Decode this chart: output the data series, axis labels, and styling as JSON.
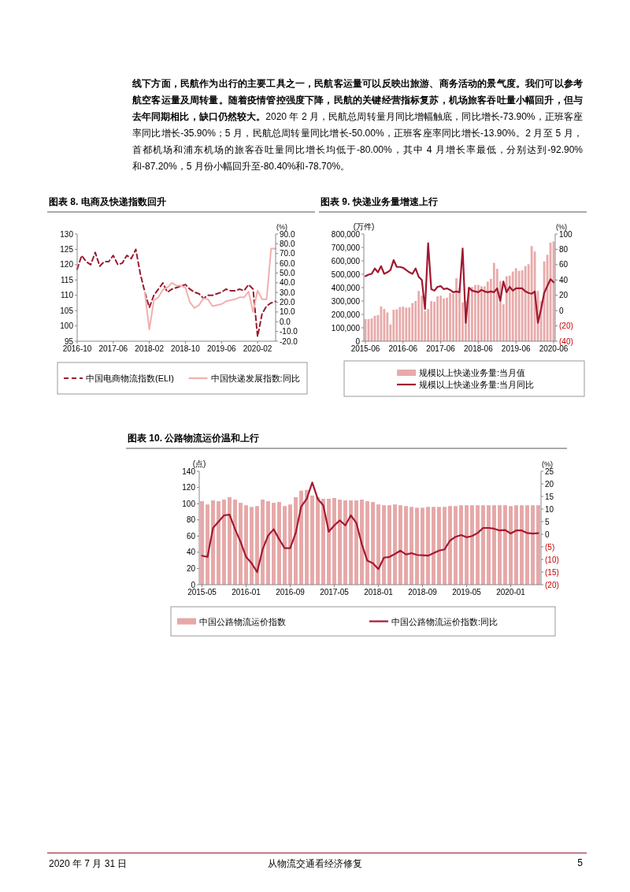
{
  "chart_data": [
    {
      "type": "line",
      "title": "图表 8. 电商及快递指数回升",
      "y2label": "(%)",
      "annotations": [
        "线下方面，民航作为出行的主要工具之一，民航客运量可以反映出旅游、商务活动的景气度。我们可以参考航空客运量及周转量。随着疫情管控强度下降，民航的关键经营指标复苏，机场旅客吞吐量小幅回升，但与去年同期相比，缺口仍然较大。",
        "2020 年 2 月，民航总周转量月同比增幅触底，同比增长-73.90%，正班客座率同比增长-35.90%；5 月，民航总周转量同比增长-50.00%，正班客座率同比增长-13.90%。2 月至 5 月，首都机场和浦东机场的旅客吞吐量同比增长均低于-80.00%，其中 4 月增长率最低，分别达到-92.90%和-87.20%，5 月份小幅回升至-80.40%和-78.70%。"
      ],
      "categories": [
        "2016-10",
        null,
        null,
        null,
        null,
        null,
        null,
        null,
        "2017-06",
        null,
        null,
        null,
        null,
        null,
        null,
        null,
        "2018-02",
        null,
        null,
        null,
        null,
        null,
        null,
        null,
        "2018-10",
        null,
        null,
        null,
        null,
        null,
        null,
        null,
        "2019-06",
        null,
        null,
        null,
        null,
        null,
        null,
        null,
        "2020-02",
        null,
        null,
        null,
        null
      ],
      "series": [
        {
          "name": "中国电商物流指数(ELI)",
          "line_style": "dashed",
          "color": "#9b1b30",
          "values": [
            118.5,
            123,
            121,
            120,
            124,
            119.5,
            121,
            121,
            123,
            120,
            120.5,
            123,
            122,
            125,
            117,
            111,
            106,
            110,
            112,
            114,
            111,
            112,
            112.5,
            113,
            113.5,
            112,
            111,
            110.5,
            109,
            110,
            110,
            110.5,
            111,
            112,
            111.5,
            111.5,
            112,
            111.5,
            113.5,
            112,
            96.5,
            104,
            106.5,
            107.5,
            108
          ]
        },
        {
          "name": "中国快递发展指数:同比",
          "axis": "y2",
          "line_style": "solid",
          "color": "#f0b0ae",
          "values": [
            null,
            null,
            null,
            null,
            null,
            null,
            null,
            null,
            null,
            null,
            null,
            null,
            null,
            null,
            null,
            30,
            -8,
            22,
            25,
            33,
            35,
            40,
            37,
            37,
            35,
            20,
            14,
            17,
            24,
            23,
            16,
            17,
            18,
            21,
            22,
            23,
            25,
            25,
            31,
            10,
            32,
            23,
            23,
            75,
            75
          ]
        }
      ],
      "ylim": [
        95,
        130
      ],
      "yticks": [
        95,
        100,
        105,
        110,
        115,
        120,
        125,
        130
      ],
      "y2lim": [
        -20,
        90
      ],
      "y2ticks": [
        {
          "value": -20,
          "label": "-20.0"
        },
        {
          "value": -10,
          "label": "-10.0"
        },
        {
          "value": 0,
          "label": "0.0"
        },
        {
          "value": 10,
          "label": "10.0"
        },
        {
          "value": 20,
          "label": "20.0"
        },
        {
          "value": 30,
          "label": "30.0"
        },
        {
          "value": 40,
          "label": "40.0"
        },
        {
          "value": 50,
          "label": "50.0"
        },
        {
          "value": 60,
          "label": "60.0"
        },
        {
          "value": 70,
          "label": "70.0"
        },
        {
          "value": 80,
          "label": "80.0"
        },
        {
          "value": 90,
          "label": "90.0"
        }
      ],
      "legend": "bottom"
    },
    {
      "type": "bar",
      "title": "图表 9. 快递业务量增速上行",
      "ylabel": "(万件)",
      "y2label": "(%)",
      "categories": [
        "2015-06",
        null,
        null,
        null,
        null,
        null,
        null,
        null,
        null,
        null,
        null,
        null,
        "2016-06",
        null,
        null,
        null,
        null,
        null,
        null,
        null,
        null,
        null,
        null,
        null,
        "2017-06",
        null,
        null,
        null,
        null,
        null,
        null,
        null,
        null,
        null,
        null,
        null,
        "2018-06",
        null,
        null,
        null,
        null,
        null,
        null,
        null,
        null,
        null,
        null,
        null,
        "2019-06",
        null,
        null,
        null,
        null,
        null,
        null,
        null,
        null,
        null,
        null,
        null,
        "2020-06"
      ],
      "series": [
        {
          "name": "规模以上快递业务量:当月值",
          "color": "#e8aaaa",
          "values": [
            165000,
            165000,
            170000,
            190000,
            195000,
            260000,
            240000,
            215000,
            125000,
            235000,
            238000,
            255000,
            258000,
            250000,
            252000,
            285000,
            300000,
            375000,
            340000,
            225000,
            240000,
            300000,
            295000,
            335000,
            340000,
            320000,
            325000,
            360000,
            355000,
            470000,
            400000,
            290000,
            300000,
            395000,
            405000,
            420000,
            420000,
            410000,
            410000,
            445000,
            465000,
            585000,
            540000,
            450000,
            275000,
            485000,
            490000,
            520000,
            545000,
            525000,
            530000,
            560000,
            575000,
            710000,
            670000,
            375000,
            300000,
            595000,
            645000,
            735000,
            745000
          ]
        },
        {
          "name": "规模以上快递业务量:当月同比",
          "type": "line",
          "axis": "y2",
          "line_style": "solid",
          "color": "#a01830",
          "values": [
            45,
            47,
            48,
            55,
            50,
            58,
            48,
            50,
            53,
            66,
            57,
            57,
            56,
            53,
            50,
            48,
            55,
            44,
            40,
            2,
            88,
            28,
            26,
            31,
            32,
            28,
            29,
            27,
            24,
            25,
            24,
            81,
            -16,
            30,
            26,
            25,
            24,
            27,
            25,
            24,
            25,
            24,
            29,
            13,
            38,
            24,
            31,
            26,
            29,
            29,
            29,
            25,
            23,
            22,
            25,
            -16,
            2,
            23,
            32,
            41,
            37
          ]
        }
      ],
      "ylim": [
        0,
        800000
      ],
      "yticks": [
        0,
        {
          "value": 100000,
          "label": "100,000"
        },
        {
          "value": 200000,
          "label": "200,000"
        },
        {
          "value": 300000,
          "label": "300,000"
        },
        {
          "value": 400000,
          "label": "400,000"
        },
        {
          "value": 500000,
          "label": "500,000"
        },
        {
          "value": 600000,
          "label": "600,000"
        },
        {
          "value": 700000,
          "label": "700,000"
        },
        {
          "value": 800000,
          "label": "800,000"
        }
      ],
      "y2lim": [
        -40,
        100
      ],
      "y2ticks": [
        {
          "value": -40,
          "label": "(40)"
        },
        {
          "value": -20,
          "label": "(20)"
        },
        0,
        20,
        40,
        60,
        80,
        100
      ],
      "legend": "bottom"
    },
    {
      "type": "bar",
      "title": "图表 10. 公路物流运价温和上行",
      "ylabel": "(点)",
      "y2label": "(%)",
      "annotations": [
        "2020 年 7 月 31 日",
        "从物流交通看经济修复",
        "5"
      ],
      "categories": [
        "2015-05",
        null,
        null,
        null,
        null,
        null,
        null,
        null,
        "2016-01",
        null,
        null,
        null,
        null,
        null,
        null,
        null,
        "2016-09",
        null,
        null,
        null,
        null,
        null,
        null,
        null,
        "2017-05",
        null,
        null,
        null,
        null,
        null,
        null,
        null,
        "2018-01",
        null,
        null,
        null,
        null,
        null,
        null,
        null,
        "2018-09",
        null,
        null,
        null,
        null,
        null,
        null,
        null,
        "2019-05",
        null,
        null,
        null,
        null,
        null,
        null,
        null,
        "2020-01",
        null,
        null,
        null,
        null,
        null
      ],
      "series": [
        {
          "name": "中国公路物流运价指数",
          "color": "#e6a8a8",
          "values": [
            103,
            99,
            104,
            103,
            105,
            108,
            105,
            101,
            98,
            96,
            97,
            105,
            103,
            101,
            102,
            97,
            99,
            108,
            116,
            117,
            110,
            108,
            106,
            106,
            107,
            105,
            104,
            104,
            104,
            105,
            103,
            102,
            99,
            98,
            98,
            99,
            98,
            97,
            96,
            95,
            95,
            96,
            96,
            96,
            96,
            97,
            97,
            98,
            98,
            98,
            98,
            98,
            98,
            98,
            98,
            98,
            97,
            98,
            98,
            98,
            98,
            98
          ]
        },
        {
          "name": "中国公路物流运价指数:同比",
          "type": "line",
          "axis": "y2",
          "line_style": "solid",
          "color": "#a51931",
          "values": [
            -8.5,
            -9,
            2.5,
            5,
            7.5,
            7.8,
            2,
            -3,
            -9,
            -11.5,
            -15,
            -6,
            -0.5,
            2,
            -2,
            -5.5,
            -5.5,
            0.5,
            11,
            14,
            20.5,
            14,
            11.5,
            1,
            3.5,
            5.5,
            3.5,
            7.5,
            4.5,
            -4,
            -10.5,
            -11.5,
            -13.8,
            -9.3,
            -9,
            -7.8,
            -6.5,
            -8,
            -7.5,
            -8.2,
            -8.3,
            -8.5,
            -7.5,
            -6.5,
            -6,
            -2.5,
            -1,
            -0.3,
            -1.2,
            -0.7,
            0.5,
            2.5,
            2.5,
            2.2,
            1.5,
            1.7,
            0.3,
            1.5,
            1.5,
            0.5,
            0.3,
            0.4
          ]
        }
      ],
      "ylim": [
        0,
        140
      ],
      "yticks": [
        0,
        20,
        40,
        60,
        80,
        100,
        120,
        140
      ],
      "y2lim": [
        -20,
        25
      ],
      "y2ticks": [
        {
          "value": -20,
          "label": "(20)"
        },
        {
          "value": -15,
          "label": "(15)"
        },
        {
          "value": -10,
          "label": "(10)"
        },
        {
          "value": -5,
          "label": "(5)"
        },
        0,
        5,
        10,
        15,
        20,
        25
      ],
      "legend": "bottom"
    }
  ]
}
